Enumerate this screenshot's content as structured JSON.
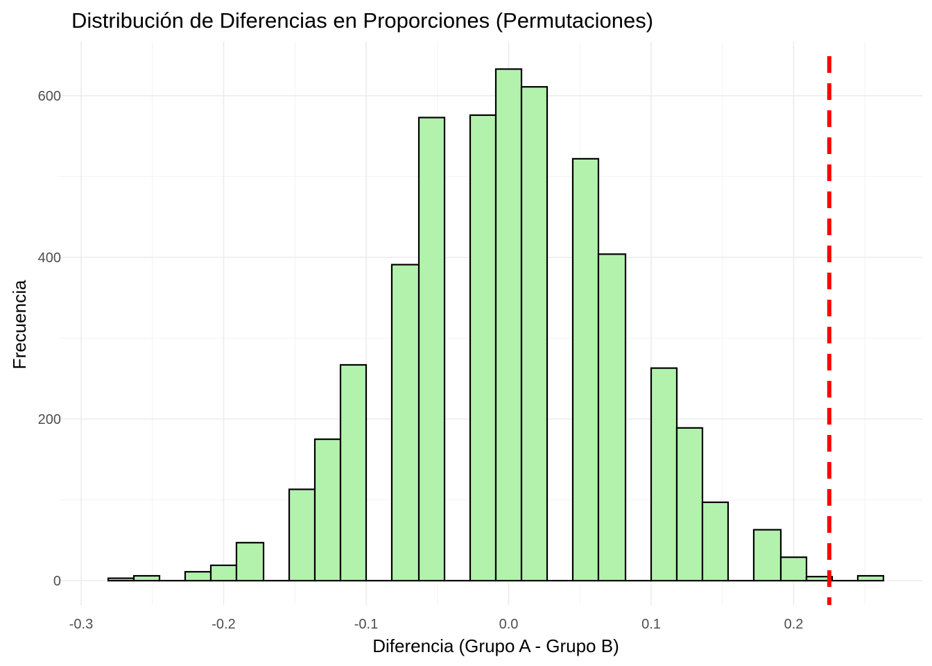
{
  "chart_data": {
    "type": "bar",
    "title": "Distribución de Diferencias en Proporciones (Permutaciones)",
    "xlabel": "Diferencia (Grupo A - Grupo B)",
    "ylabel": "Frecuencia",
    "xlim": [
      -0.3,
      0.27
    ],
    "ylim": [
      -28,
      660
    ],
    "x_ticks": [
      -0.3,
      -0.2,
      -0.1,
      0.0,
      0.1,
      0.2
    ],
    "x_tick_labels": [
      "-0.3",
      "-0.2",
      "-0.1",
      "0.0",
      "0.1",
      "0.2"
    ],
    "y_ticks": [
      0,
      200,
      400,
      600
    ],
    "y_tick_labels": [
      "0",
      "200",
      "400",
      "600"
    ],
    "grid": true,
    "bar_fill": "#b3f2ad",
    "bar_outline": "#000000",
    "bins": [
      {
        "x0": -0.281,
        "x1": -0.263,
        "value": 3
      },
      {
        "x0": -0.263,
        "x1": -0.245,
        "value": 6
      },
      {
        "x0": -0.245,
        "x1": -0.227,
        "value": 0
      },
      {
        "x0": -0.227,
        "x1": -0.209,
        "value": 11
      },
      {
        "x0": -0.209,
        "x1": -0.191,
        "value": 19
      },
      {
        "x0": -0.191,
        "x1": -0.172,
        "value": 47
      },
      {
        "x0": -0.172,
        "x1": -0.154,
        "value": 0
      },
      {
        "x0": -0.154,
        "x1": -0.136,
        "value": 113
      },
      {
        "x0": -0.136,
        "x1": -0.118,
        "value": 175
      },
      {
        "x0": -0.118,
        "x1": -0.1,
        "value": 267
      },
      {
        "x0": -0.1,
        "x1": -0.082,
        "value": 0
      },
      {
        "x0": -0.082,
        "x1": -0.063,
        "value": 391
      },
      {
        "x0": -0.063,
        "x1": -0.045,
        "value": 573
      },
      {
        "x0": -0.045,
        "x1": -0.027,
        "value": 0
      },
      {
        "x0": -0.027,
        "x1": -0.009,
        "value": 576
      },
      {
        "x0": -0.009,
        "x1": 0.009,
        "value": 633
      },
      {
        "x0": 0.009,
        "x1": 0.027,
        "value": 611
      },
      {
        "x0": 0.027,
        "x1": 0.045,
        "value": 0
      },
      {
        "x0": 0.045,
        "x1": 0.063,
        "value": 522
      },
      {
        "x0": 0.063,
        "x1": 0.082,
        "value": 404
      },
      {
        "x0": 0.082,
        "x1": 0.1,
        "value": 0
      },
      {
        "x0": 0.1,
        "x1": 0.118,
        "value": 263
      },
      {
        "x0": 0.118,
        "x1": 0.136,
        "value": 189
      },
      {
        "x0": 0.136,
        "x1": 0.154,
        "value": 97
      },
      {
        "x0": 0.154,
        "x1": 0.172,
        "value": 0
      },
      {
        "x0": 0.172,
        "x1": 0.191,
        "value": 63
      },
      {
        "x0": 0.191,
        "x1": 0.209,
        "value": 29
      },
      {
        "x0": 0.209,
        "x1": 0.227,
        "value": 5
      },
      {
        "x0": 0.227,
        "x1": 0.245,
        "value": 0
      },
      {
        "x0": 0.245,
        "x1": 0.263,
        "value": 6
      }
    ],
    "reference_line": {
      "x": 0.225,
      "color": "#ff0000",
      "style": "dashed"
    }
  }
}
